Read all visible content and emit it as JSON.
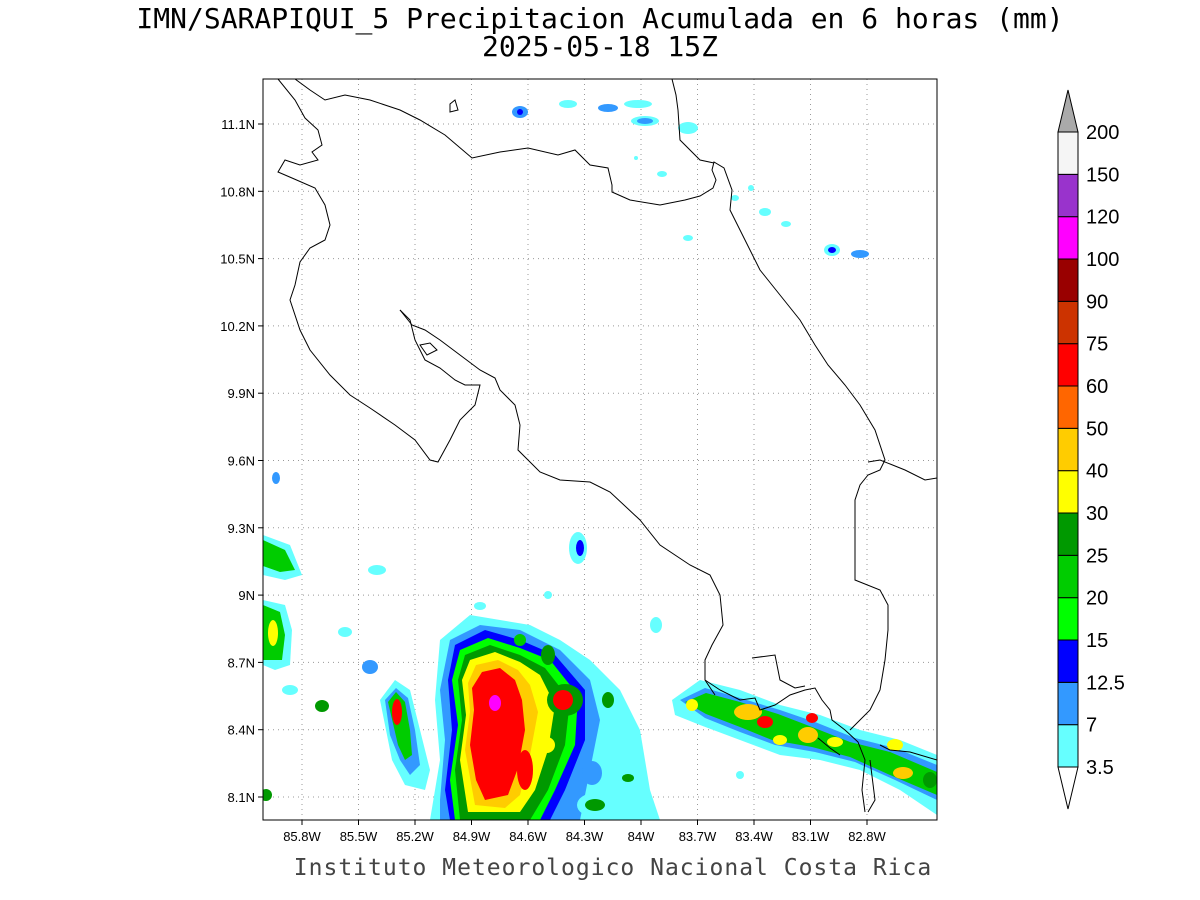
{
  "title": "IMN/SARAPIQUI_5 Precipitacion Acumulada en 6 horas (mm)",
  "subtitle": "2025-05-18 15Z",
  "footer": "Instituto Meteorologico Nacional Costa Rica",
  "map": {
    "lon_labels": [
      "85.8W",
      "85.5W",
      "85.2W",
      "84.9W",
      "84.6W",
      "84.3W",
      "84W",
      "83.7W",
      "83.4W",
      "83.1W",
      "82.8W"
    ],
    "lat_labels": [
      "11.1N",
      "10.8N",
      "10.5N",
      "10.2N",
      "9.9N",
      "9.6N",
      "9.3N",
      "9N",
      "8.7N",
      "8.4N",
      "8.1N"
    ]
  },
  "colorbar": {
    "labels": [
      "3.5",
      "7",
      "12.5",
      "15",
      "20",
      "25",
      "30",
      "40",
      "50",
      "60",
      "75",
      "90",
      "100",
      "120",
      "150",
      "200"
    ],
    "colors": [
      "#66ffff",
      "#3399ff",
      "#0000ff",
      "#00ff00",
      "#00cc00",
      "#009900",
      "#ffff00",
      "#ffcc00",
      "#ff6600",
      "#ff0000",
      "#cc3300",
      "#990000",
      "#ff00ff",
      "#9933cc",
      "#f5f5f5",
      "#aaaaaa"
    ]
  }
}
